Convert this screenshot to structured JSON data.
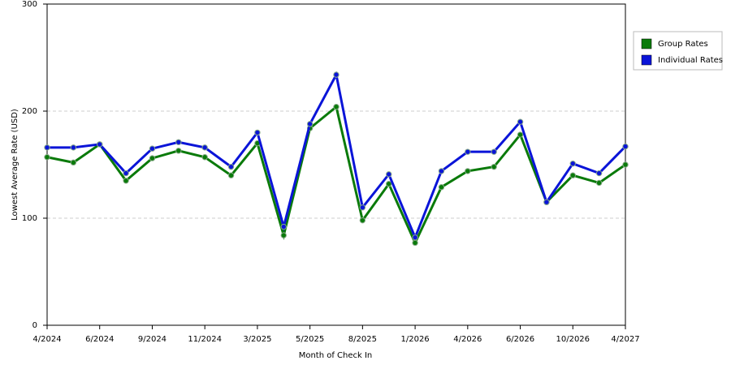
{
  "chart_data": {
    "type": "line",
    "x_label": "Month of Check In",
    "y_label": "Lowest Average Rate (USD)",
    "categories": [
      "4/2024",
      null,
      "6/2024",
      null,
      "9/2024",
      null,
      "11/2024",
      null,
      "3/2025",
      null,
      "5/2025",
      null,
      "8/2025",
      null,
      "1/2026",
      null,
      "4/2026",
      null,
      "6/2026",
      null,
      "10/2026",
      null,
      "4/2027"
    ],
    "series": [
      {
        "name": "Group Rates",
        "color": "#0a7a0a",
        "values": [
          157,
          152,
          169,
          135,
          156,
          163,
          157,
          140,
          170,
          84,
          184,
          204,
          98,
          132,
          77,
          129,
          144,
          148,
          178,
          115,
          140,
          133,
          150
        ]
      },
      {
        "name": "Individual Rates",
        "color": "#0a14d8",
        "values": [
          166,
          166,
          169,
          142,
          165,
          171,
          166,
          148,
          180,
          92,
          188,
          234,
          110,
          141,
          82,
          144,
          162,
          162,
          190,
          115,
          151,
          142,
          167
        ]
      }
    ],
    "ylim": [
      0,
      300
    ],
    "yticks": [
      0,
      100,
      200,
      300
    ],
    "grid": true,
    "legend": "right"
  }
}
